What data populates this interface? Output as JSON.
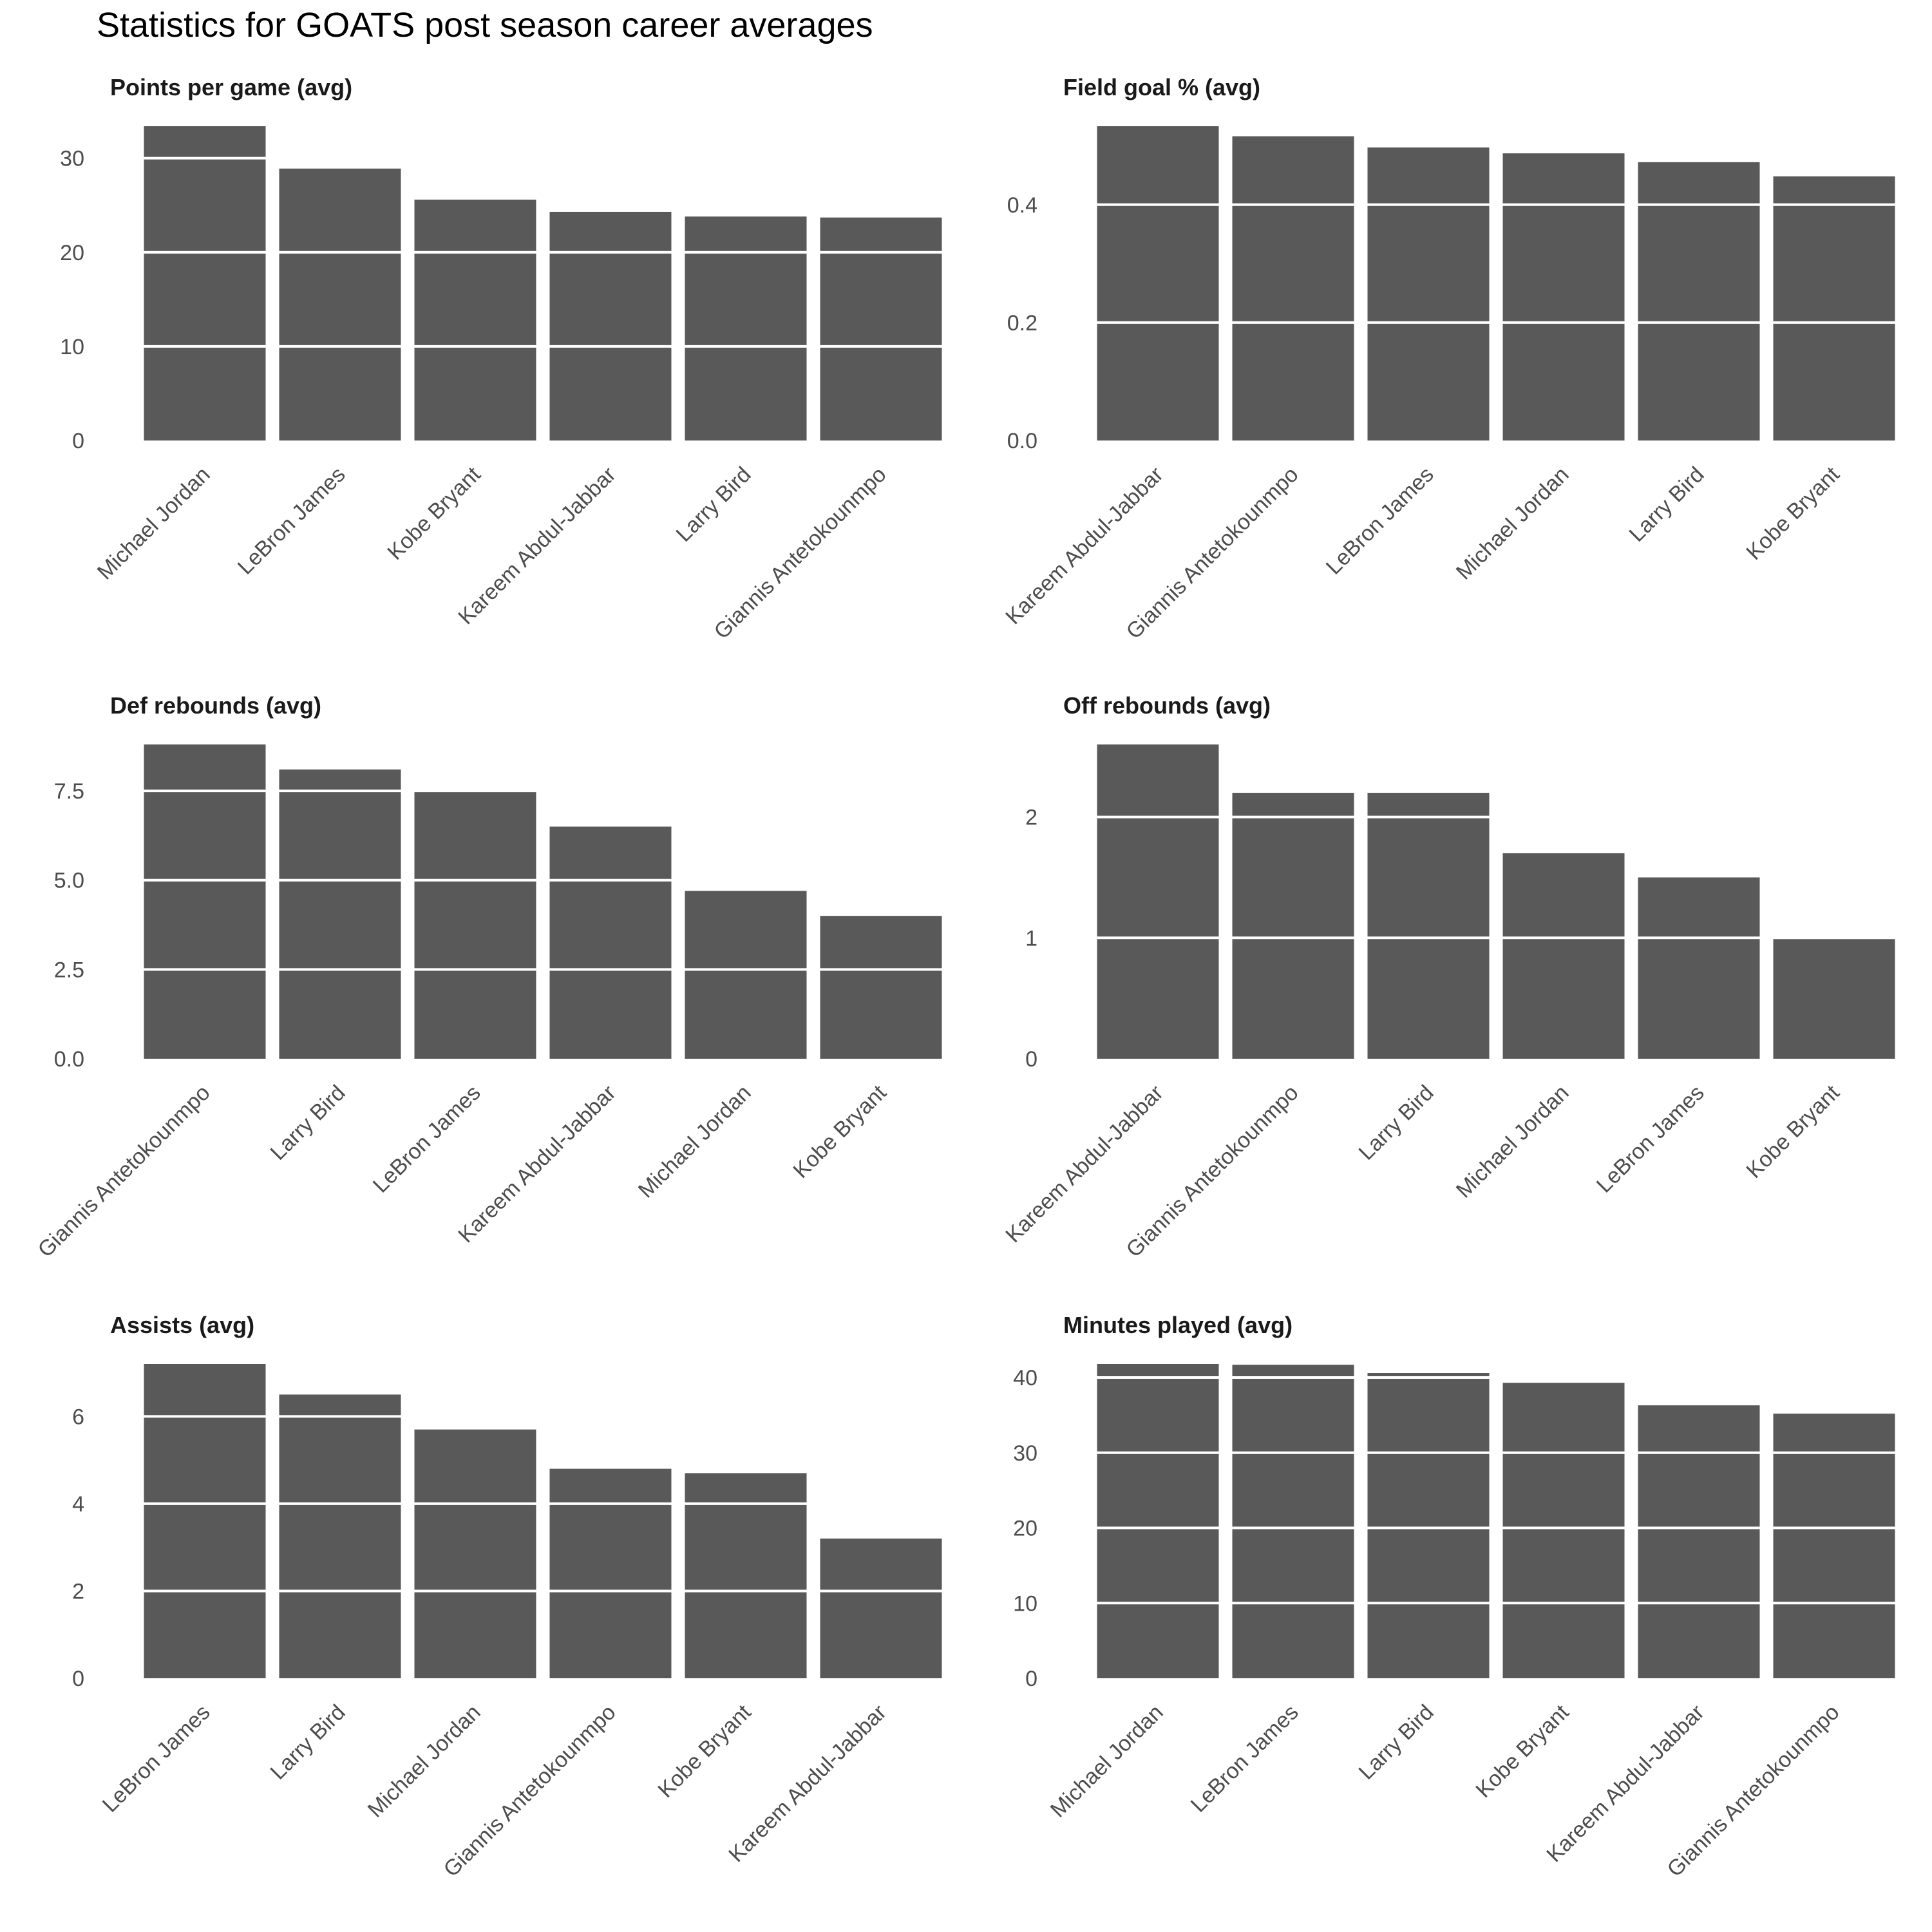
{
  "title": "Statistics for GOATS post season career averages",
  "colors": {
    "bar": "#595959",
    "grid": "#ffffff",
    "text": "#4d4d4d",
    "panel_title": "#1a1a1a",
    "background": "#ffffff"
  },
  "chart_data": [
    {
      "type": "bar",
      "title": "Points per game (avg)",
      "categories": [
        "Michael Jordan",
        "LeBron James",
        "Kobe Bryant",
        "Kareem Abdul-Jabbar",
        "Larry Bird",
        "Giannis Antetokounmpo"
      ],
      "values": [
        33.4,
        28.9,
        25.6,
        24.3,
        23.8,
        23.7
      ],
      "yticks": [
        "0",
        "10",
        "20",
        "30"
      ],
      "ylim": [
        0,
        33.4
      ],
      "xlabel": "",
      "ylabel": "",
      "legend": "none",
      "grid": "horizontal lines over bars"
    },
    {
      "type": "bar",
      "title": "Field goal % (avg)",
      "categories": [
        "Kareem Abdul-Jabbar",
        "Giannis Antetokounmpo",
        "LeBron James",
        "Michael Jordan",
        "Larry Bird",
        "Kobe Bryant"
      ],
      "values": [
        0.533,
        0.516,
        0.497,
        0.487,
        0.472,
        0.448
      ],
      "yticks": [
        "0.0",
        "0.2",
        "0.4"
      ],
      "ylim": [
        0,
        0.533
      ],
      "xlabel": "",
      "ylabel": "",
      "legend": "none",
      "grid": "horizontal lines over bars"
    },
    {
      "type": "bar",
      "title": "Def rebounds (avg)",
      "categories": [
        "Giannis Antetokounmpo",
        "Larry Bird",
        "LeBron James",
        "Kareem Abdul-Jabbar",
        "Michael Jordan",
        "Kobe Bryant"
      ],
      "values": [
        8.8,
        8.1,
        7.5,
        6.5,
        4.7,
        4.0
      ],
      "yticks": [
        "0.0",
        "2.5",
        "5.0",
        "7.5"
      ],
      "ylim": [
        0,
        8.8
      ],
      "xlabel": "",
      "ylabel": "",
      "legend": "none",
      "grid": "horizontal lines over bars"
    },
    {
      "type": "bar",
      "title": "Off rebounds (avg)",
      "categories": [
        "Kareem Abdul-Jabbar",
        "Giannis Antetokounmpo",
        "Larry Bird",
        "Michael Jordan",
        "LeBron James",
        "Kobe Bryant"
      ],
      "values": [
        2.6,
        2.2,
        2.2,
        1.7,
        1.5,
        1.0
      ],
      "yticks": [
        "0",
        "1",
        "2"
      ],
      "ylim": [
        0,
        2.6
      ],
      "xlabel": "",
      "ylabel": "",
      "legend": "none",
      "grid": "horizontal lines over bars"
    },
    {
      "type": "bar",
      "title": "Assists (avg)",
      "categories": [
        "LeBron James",
        "Larry Bird",
        "Michael Jordan",
        "Giannis Antetokounmpo",
        "Kobe Bryant",
        "Kareem Abdul-Jabbar"
      ],
      "values": [
        7.2,
        6.5,
        5.7,
        4.8,
        4.7,
        3.2
      ],
      "yticks": [
        "0",
        "2",
        "4",
        "6"
      ],
      "ylim": [
        0,
        7.2
      ],
      "xlabel": "",
      "ylabel": "",
      "legend": "none",
      "grid": "horizontal lines over bars"
    },
    {
      "type": "bar",
      "title": "Minutes played (avg)",
      "categories": [
        "Michael Jordan",
        "LeBron James",
        "Larry Bird",
        "Kobe Bryant",
        "Kareem Abdul-Jabbar",
        "Giannis Antetokounmpo"
      ],
      "values": [
        41.8,
        41.7,
        40.6,
        39.3,
        36.3,
        35.2
      ],
      "yticks": [
        "0",
        "10",
        "20",
        "30",
        "40"
      ],
      "ylim": [
        0,
        41.8
      ],
      "xlabel": "",
      "ylabel": "",
      "legend": "none",
      "grid": "horizontal lines over bars"
    }
  ]
}
